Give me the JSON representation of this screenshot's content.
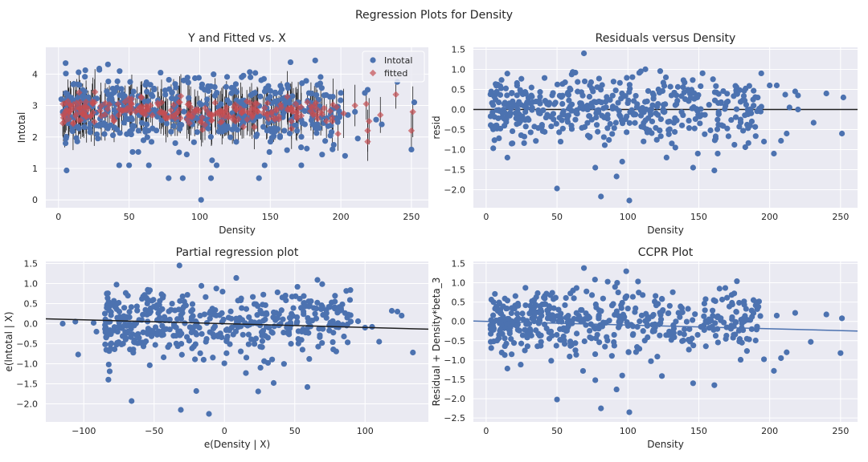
{
  "figure": {
    "suptitle": "Regression Plots for Density"
  },
  "colors": {
    "background": "#eaeaf2",
    "grid": "#ffffff",
    "blue": "#4c72b0",
    "red": "#c44e52",
    "black": "#1f1f1f"
  },
  "chart_data": [
    {
      "type": "scatter",
      "title": "Y and Fitted vs. X",
      "xlabel": "Density",
      "ylabel": "Intotal",
      "xlim": [
        -9,
        262
      ],
      "ylim": [
        -0.25,
        4.85
      ],
      "xticks": [
        0,
        50,
        100,
        150,
        200,
        250
      ],
      "yticks": [
        0,
        1,
        2,
        3,
        4
      ],
      "legend": {
        "position": "top-right",
        "entries": [
          "Intotal",
          "fitted"
        ]
      },
      "series": [
        {
          "name": "Intotal",
          "marker": "circle",
          "color": "#4c72b0",
          "points": [
            [
              101,
              0.0
            ],
            [
              78,
              0.69
            ],
            [
              88,
              0.69
            ],
            [
              108,
              0.69
            ],
            [
              142,
              0.69
            ],
            [
              43,
              1.1
            ],
            [
              50,
              1.1
            ],
            [
              64,
              1.1
            ],
            [
              112,
              1.1
            ],
            [
              146,
              1.1
            ],
            [
              172,
              1.1
            ],
            [
              203,
              1.4
            ],
            [
              240,
              3.75
            ],
            [
              252,
              3.1
            ],
            [
              250,
              1.6
            ],
            [
              229,
              2.4
            ],
            [
              219,
              3.5
            ],
            [
              217,
              3.4
            ],
            [
              200,
              3.4
            ],
            [
              131,
              3.95
            ],
            [
              5,
              1.8
            ],
            [
              3,
              2.8
            ],
            [
              2,
              3.2
            ],
            [
              205,
              2.7
            ],
            [
              212,
              1.95
            ],
            [
              210,
              2.8
            ],
            [
              190,
              2.6
            ],
            [
              195,
              1.75
            ],
            [
              225,
              2.55
            ],
            [
              160,
              2.2
            ],
            [
              170,
              3.1
            ],
            [
              180,
              2.4
            ]
          ],
          "cloud": {
            "x_range": [
              5,
              200
            ],
            "y_mean": 2.85,
            "y_sd": 0.55,
            "count": 480
          }
        },
        {
          "name": "fitted",
          "marker": "diamond",
          "color": "#c44e52",
          "points": [
            [
              239,
              3.35
            ],
            [
              251,
              2.8
            ],
            [
              250,
              2.2
            ],
            [
              228,
              2.7
            ],
            [
              219,
              1.85
            ],
            [
              219,
              2.2
            ],
            [
              220,
              2.5
            ],
            [
              218,
              3.05
            ],
            [
              210,
              3.0
            ],
            [
              202,
              2.75
            ],
            [
              198,
              2.1
            ],
            [
              197,
              2.95
            ],
            [
              194,
              2.5
            ]
          ],
          "cloud": {
            "x_range": [
              3,
              195
            ],
            "y_mean": 2.8,
            "y_sd": 0.2,
            "count": 260
          }
        }
      ],
      "errorbars": {
        "color": "#1f1f1f",
        "half_length": 0.6
      }
    },
    {
      "type": "scatter",
      "title": "Residuals versus Density",
      "xlabel": "Density",
      "ylabel": "resid",
      "xlim": [
        -9,
        262
      ],
      "ylim": [
        -2.45,
        1.55
      ],
      "xticks": [
        0,
        50,
        100,
        150,
        200,
        250
      ],
      "yticks": [
        -2.0,
        -1.5,
        -1.0,
        -0.5,
        0.0,
        0.5,
        1.0,
        1.5
      ],
      "hline": 0,
      "series": [
        {
          "name": "resid",
          "marker": "circle",
          "color": "#4c72b0",
          "points": [
            [
              69,
              1.4
            ],
            [
              50,
              -1.97
            ],
            [
              81,
              -2.17
            ],
            [
              101,
              -2.27
            ],
            [
              92,
              -1.67
            ],
            [
              96,
              -1.3
            ],
            [
              77,
              -1.45
            ],
            [
              161,
              -1.52
            ],
            [
              146,
              -1.45
            ],
            [
              203,
              -1.1
            ],
            [
              208,
              -0.78
            ],
            [
              212,
              -0.6
            ],
            [
              196,
              -0.8
            ],
            [
              251,
              -0.6
            ],
            [
              252,
              0.3
            ],
            [
              240,
              0.4
            ],
            [
              231,
              -0.33
            ],
            [
              205,
              0.6
            ],
            [
              211,
              0.37
            ],
            [
              218,
              0.45
            ],
            [
              220,
              0.35
            ],
            [
              214,
              0.05
            ],
            [
              220,
              0.0
            ],
            [
              200,
              0.6
            ],
            [
              15,
              -1.2
            ],
            [
              18,
              -0.85
            ]
          ],
          "cloud": {
            "x_range": [
              3,
              195
            ],
            "y_mean": 0.0,
            "y_sd": 0.42,
            "count": 480
          }
        }
      ]
    },
    {
      "type": "scatter",
      "title": "Partial regression plot",
      "xlabel": "e(Density | X)",
      "ylabel": "e(lntotal | X)",
      "xlim": [
        -127,
        145
      ],
      "ylim": [
        -2.45,
        1.55
      ],
      "xticks": [
        -100,
        -50,
        0,
        50,
        100
      ],
      "yticks": [
        -2.0,
        -1.5,
        -1.0,
        -0.5,
        0.0,
        0.5,
        1.0,
        1.5
      ],
      "fit_line": {
        "slope": -0.00095,
        "intercept": 0.0,
        "color": "#1f1f1f"
      },
      "series": [
        {
          "name": "resid",
          "marker": "circle",
          "color": "#4c72b0",
          "points": [
            [
              -32,
              1.45
            ],
            [
              -66,
              -1.93
            ],
            [
              -31,
              -2.15
            ],
            [
              -11,
              -2.25
            ],
            [
              -20,
              -1.68
            ],
            [
              24,
              -1.69
            ],
            [
              35,
              -1.48
            ],
            [
              59,
              -1.58
            ],
            [
              -115,
              0.0
            ],
            [
              -106,
              0.05
            ],
            [
              -104,
              -0.77
            ],
            [
              -93,
              0.02
            ],
            [
              -91,
              -0.2
            ],
            [
              110,
              -0.45
            ],
            [
              123,
              0.3
            ],
            [
              134,
              -0.72
            ],
            [
              126,
              0.2
            ],
            [
              119,
              0.32
            ],
            [
              100,
              -0.1
            ],
            [
              95,
              0.06
            ],
            [
              105,
              -0.08
            ]
          ],
          "cloud": {
            "x_range": [
              -85,
              90
            ],
            "y_mean": 0.0,
            "y_sd": 0.42,
            "count": 480
          }
        }
      ]
    },
    {
      "type": "scatter",
      "title": "CCPR Plot",
      "xlabel": "Density",
      "ylabel": "Residual + Density*beta_3",
      "xlim": [
        -9,
        262
      ],
      "ylim": [
        -2.6,
        1.55
      ],
      "xticks": [
        0,
        50,
        100,
        150,
        200,
        250
      ],
      "yticks": [
        -2.5,
        -2.0,
        -1.5,
        -1.0,
        -0.5,
        0.0,
        0.5,
        1.0,
        1.5
      ],
      "fit_line": {
        "slope": -0.00095,
        "intercept": 0.0,
        "color": "#4c72b0"
      },
      "series": [
        {
          "name": "resid",
          "marker": "circle",
          "color": "#4c72b0",
          "points": [
            [
              69,
              1.38
            ],
            [
              50,
              -2.02
            ],
            [
              81,
              -2.25
            ],
            [
              101,
              -2.35
            ],
            [
              92,
              -1.76
            ],
            [
              96,
              -1.4
            ],
            [
              77,
              -1.52
            ],
            [
              161,
              -1.65
            ],
            [
              146,
              -1.6
            ],
            [
              203,
              -1.28
            ],
            [
              208,
              -0.95
            ],
            [
              212,
              -0.8
            ],
            [
              196,
              -0.98
            ],
            [
              250,
              -0.82
            ],
            [
              251,
              0.08
            ],
            [
              240,
              0.18
            ],
            [
              229,
              -0.53
            ],
            [
              205,
              0.15
            ],
            [
              218,
              0.22
            ],
            [
              15,
              -1.22
            ],
            [
              18,
              -0.85
            ]
          ],
          "cloud": {
            "x_range": [
              3,
              195
            ],
            "y_mean": -0.02,
            "y_sd": 0.42,
            "count": 480
          }
        }
      ]
    }
  ]
}
